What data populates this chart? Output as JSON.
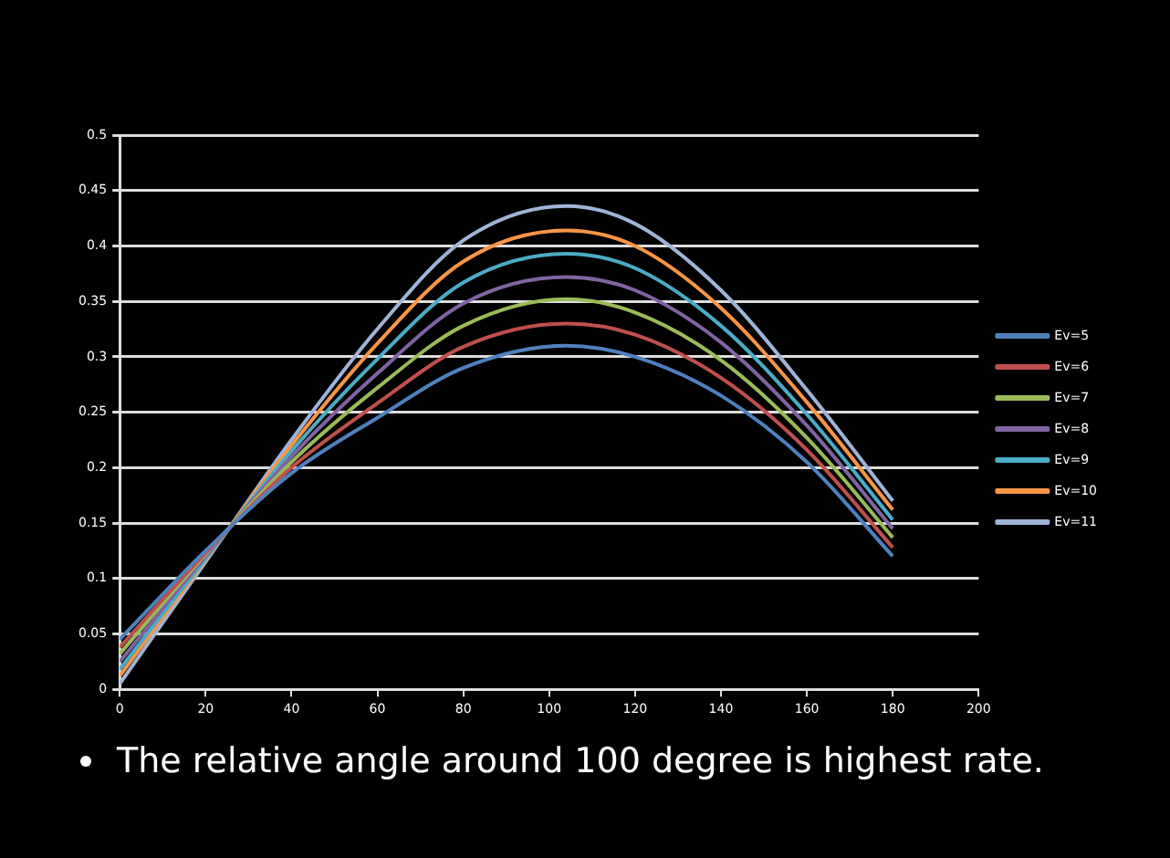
{
  "chart_data": {
    "type": "line",
    "x": [
      0,
      20,
      40,
      60,
      80,
      104,
      120,
      140,
      160,
      180
    ],
    "xlim": [
      0,
      200
    ],
    "xticks": [
      0,
      20,
      40,
      60,
      80,
      100,
      120,
      140,
      160,
      180,
      200
    ],
    "ylim": [
      0,
      0.5
    ],
    "yticks": [
      0,
      0.05,
      0.1,
      0.15,
      0.2,
      0.25,
      0.3,
      0.35,
      0.4,
      0.45,
      0.5
    ],
    "grid": "y",
    "legend": "right",
    "marker": "none",
    "line_style": "solid",
    "series": [
      {
        "name": "Ev=5",
        "color": "#4f81bd",
        "values": [
          0.045,
          0.125,
          0.195,
          0.245,
          0.29,
          0.31,
          0.3,
          0.265,
          0.205,
          0.12
        ]
      },
      {
        "name": "Ev=6",
        "color": "#c0504d",
        "values": [
          0.038,
          0.123,
          0.2,
          0.258,
          0.309,
          0.33,
          0.32,
          0.281,
          0.216,
          0.128
        ]
      },
      {
        "name": "Ev=7",
        "color": "#9bbb59",
        "values": [
          0.032,
          0.122,
          0.205,
          0.272,
          0.328,
          0.352,
          0.34,
          0.297,
          0.227,
          0.137
        ]
      },
      {
        "name": "Ev=8",
        "color": "#8064a2",
        "values": [
          0.025,
          0.12,
          0.21,
          0.285,
          0.348,
          0.372,
          0.36,
          0.313,
          0.238,
          0.145
        ]
      },
      {
        "name": "Ev=9",
        "color": "#4bacc6",
        "values": [
          0.018,
          0.118,
          0.215,
          0.298,
          0.367,
          0.393,
          0.38,
          0.328,
          0.248,
          0.153
        ]
      },
      {
        "name": "Ev=10",
        "color": "#f79646",
        "values": [
          0.012,
          0.117,
          0.22,
          0.312,
          0.386,
          0.414,
          0.4,
          0.344,
          0.259,
          0.162
        ]
      },
      {
        "name": "Ev=11",
        "color": "#a0b4d8",
        "values": [
          0.005,
          0.115,
          0.225,
          0.325,
          0.405,
          0.436,
          0.42,
          0.36,
          0.27,
          0.17
        ]
      }
    ],
    "annotations": [
      "The relative angle around 100 degree is highest rate."
    ]
  }
}
